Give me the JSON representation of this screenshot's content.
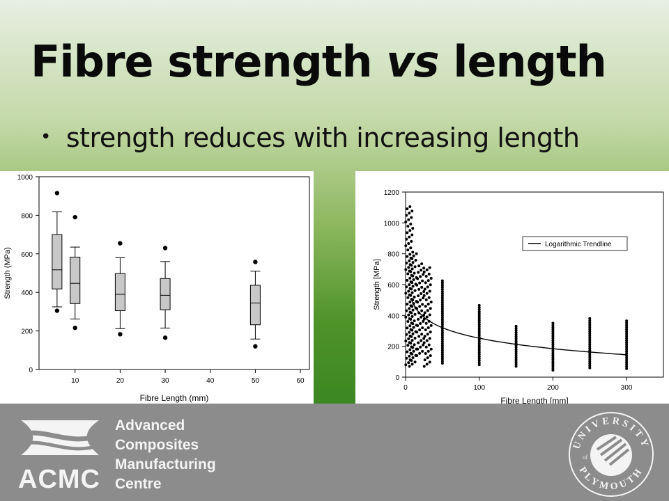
{
  "slide": {
    "title_part1": "Fibre strength",
    "title_part2": "vs",
    "title_part3": "length",
    "bullet": "strength reduces with increasing length"
  },
  "chart_data": [
    {
      "type": "box",
      "xlabel": "Fibre Length (mm)",
      "ylabel": "Strength (MPa)",
      "xlim": [
        2,
        62
      ],
      "ylim": [
        0,
        1000
      ],
      "xticks": [
        10,
        20,
        30,
        40,
        50,
        60
      ],
      "yticks": [
        0,
        200,
        400,
        600,
        800,
        1000
      ],
      "boxes": [
        {
          "x": 6,
          "whisker_low": 325,
          "q1": 418,
          "median": 517,
          "q3": 700,
          "whisker_high": 818,
          "outliers": [
            305,
            915
          ]
        },
        {
          "x": 10,
          "whisker_low": 262,
          "q1": 342,
          "median": 447,
          "q3": 583,
          "whisker_high": 635,
          "outliers": [
            216,
            790
          ]
        },
        {
          "x": 20,
          "whisker_low": 212,
          "q1": 305,
          "median": 390,
          "q3": 498,
          "whisker_high": 580,
          "outliers": [
            183,
            655
          ]
        },
        {
          "x": 30,
          "whisker_low": 215,
          "q1": 310,
          "median": 385,
          "q3": 472,
          "whisker_high": 560,
          "outliers": [
            165,
            630
          ]
        },
        {
          "x": 50,
          "whisker_low": 158,
          "q1": 232,
          "median": 345,
          "q3": 437,
          "whisker_high": 510,
          "outliers": [
            120,
            558
          ]
        }
      ]
    },
    {
      "type": "scatter",
      "xlabel": "Fibre Length [mm]",
      "ylabel": "Strength [MPa]",
      "xlim": [
        0,
        350
      ],
      "ylim": [
        0,
        1200
      ],
      "xticks": [
        0,
        100,
        200,
        300
      ],
      "yticks": [
        0,
        200,
        400,
        600,
        800,
        1000,
        1200
      ],
      "legend": {
        "label": "Logarithmic Trendline",
        "position": "top-right"
      },
      "columns": [
        {
          "x": 5,
          "min": 80,
          "max": 1105
        },
        {
          "x": 10,
          "min": 70,
          "max": 800
        },
        {
          "x": 20,
          "min": 140,
          "max": 735
        },
        {
          "x": 30,
          "min": 70,
          "max": 710
        },
        {
          "x": 50,
          "min": 90,
          "max": 625
        },
        {
          "x": 100,
          "min": 80,
          "max": 465
        },
        {
          "x": 150,
          "min": 70,
          "max": 330
        },
        {
          "x": 200,
          "min": 45,
          "max": 350
        },
        {
          "x": 250,
          "min": 60,
          "max": 380
        },
        {
          "x": 300,
          "min": 55,
          "max": 365
        }
      ],
      "trendline": {
        "type": "logarithmic",
        "x_start": 8,
        "x_end": 300,
        "y_at_start": 500,
        "y_at_end": 145
      }
    }
  ],
  "footer": {
    "logo_lines": [
      "Advanced",
      "Composites",
      "Manufacturing",
      "Centre"
    ],
    "logo_abbrev": "ACMC",
    "seal_top": "UNIVERSITY",
    "seal_of": "of",
    "seal_bottom": "PLYMOUTH"
  },
  "colors": {
    "footer_bg": "#8c8c8c",
    "box_fill": "#c8c8c8",
    "slide_green": "#3c8723"
  }
}
